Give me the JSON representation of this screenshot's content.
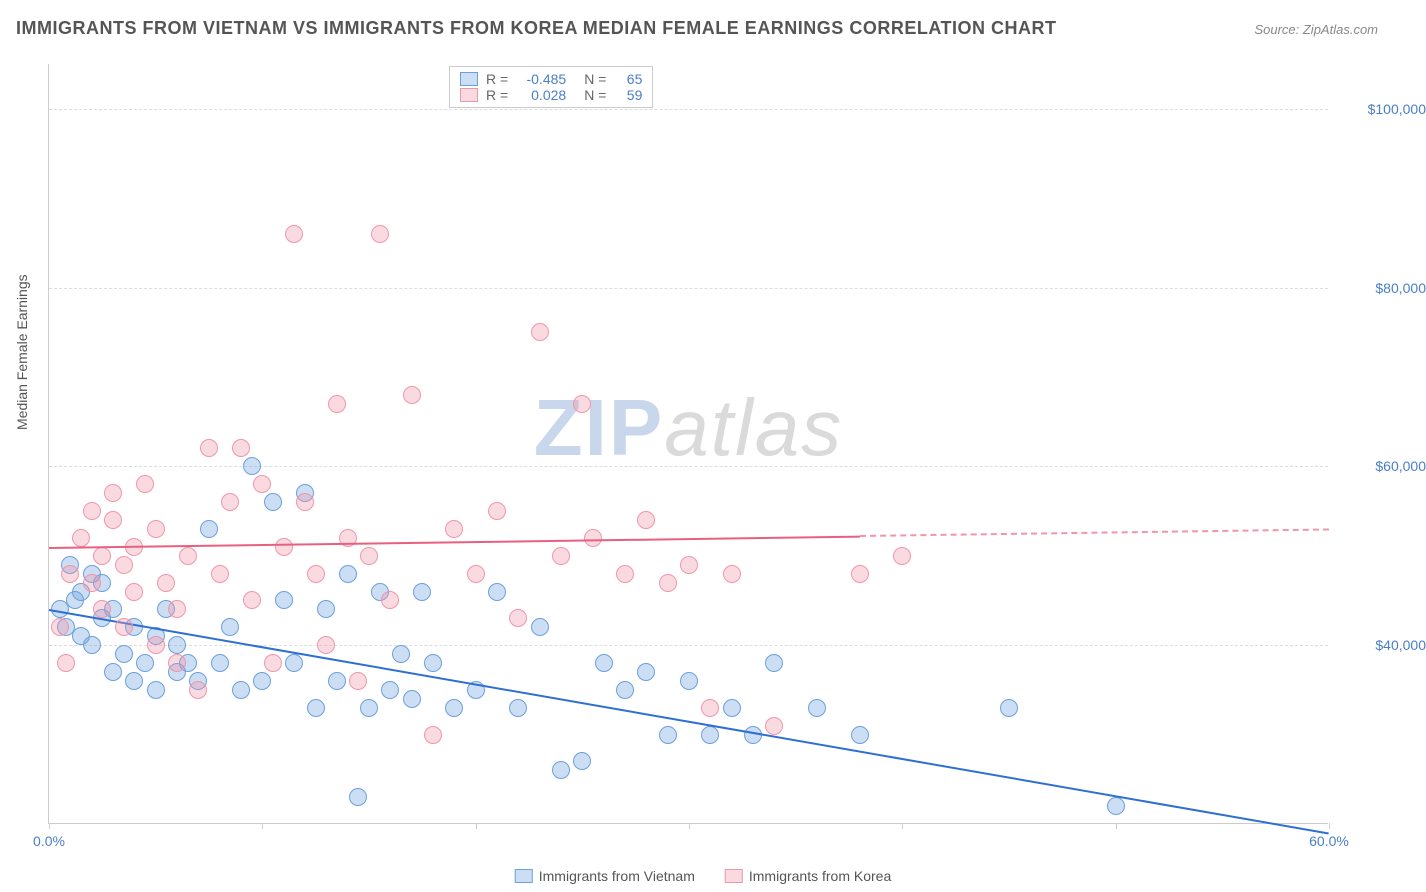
{
  "title": "IMMIGRANTS FROM VIETNAM VS IMMIGRANTS FROM KOREA MEDIAN FEMALE EARNINGS CORRELATION CHART",
  "source": "Source: ZipAtlas.com",
  "ylabel": "Median Female Earnings",
  "watermark_zip": "ZIP",
  "watermark_atlas": "atlas",
  "chart": {
    "type": "scatter",
    "background_color": "#ffffff",
    "grid_color": "#dddddd",
    "axis_color": "#cccccc",
    "xlim": [
      0,
      60
    ],
    "ylim": [
      20000,
      105000
    ],
    "yticks": [
      40000,
      60000,
      80000,
      100000
    ],
    "ytick_labels": [
      "$40,000",
      "$60,000",
      "$80,000",
      "$100,000"
    ],
    "xticks": [
      0,
      10,
      20,
      30,
      40,
      50,
      60
    ],
    "xtick_labels_shown": {
      "0": "0.0%",
      "60": "60.0%"
    },
    "marker_radius": 9,
    "marker_stroke_width": 1.5,
    "label_fontsize": 14,
    "tick_label_color": "#4a7ec9"
  },
  "series": [
    {
      "name": "Immigrants from Vietnam",
      "fill": "rgba(108, 160, 220, 0.35)",
      "stroke": "#6ca0dc",
      "trend_color": "#2e6fd1",
      "R": "-0.485",
      "N": "65",
      "trend": {
        "x1": 0,
        "y1": 44000,
        "x2": 60,
        "y2": 19000,
        "solid_until_x": 60
      },
      "points": [
        [
          0.5,
          44000
        ],
        [
          0.8,
          42000
        ],
        [
          1.0,
          49000
        ],
        [
          1.2,
          45000
        ],
        [
          1.5,
          41000
        ],
        [
          1.5,
          46000
        ],
        [
          2.0,
          48000
        ],
        [
          2.0,
          40000
        ],
        [
          2.5,
          43000
        ],
        [
          2.5,
          47000
        ],
        [
          3.0,
          37000
        ],
        [
          3.0,
          44000
        ],
        [
          3.5,
          39000
        ],
        [
          4.0,
          36000
        ],
        [
          4.0,
          42000
        ],
        [
          4.5,
          38000
        ],
        [
          5.0,
          35000
        ],
        [
          5.0,
          41000
        ],
        [
          5.5,
          44000
        ],
        [
          6.0,
          37000
        ],
        [
          6.0,
          40000
        ],
        [
          6.5,
          38000
        ],
        [
          7.0,
          36000
        ],
        [
          7.5,
          53000
        ],
        [
          8.0,
          38000
        ],
        [
          8.5,
          42000
        ],
        [
          9.0,
          35000
        ],
        [
          9.5,
          60000
        ],
        [
          10.0,
          36000
        ],
        [
          10.5,
          56000
        ],
        [
          11.0,
          45000
        ],
        [
          11.5,
          38000
        ],
        [
          12.0,
          57000
        ],
        [
          12.5,
          33000
        ],
        [
          13.0,
          44000
        ],
        [
          13.5,
          36000
        ],
        [
          14.0,
          48000
        ],
        [
          14.5,
          23000
        ],
        [
          15.0,
          33000
        ],
        [
          15.5,
          46000
        ],
        [
          16.0,
          35000
        ],
        [
          16.5,
          39000
        ],
        [
          17.0,
          34000
        ],
        [
          17.5,
          46000
        ],
        [
          18.0,
          38000
        ],
        [
          19.0,
          33000
        ],
        [
          20.0,
          35000
        ],
        [
          21.0,
          46000
        ],
        [
          22.0,
          33000
        ],
        [
          23.0,
          42000
        ],
        [
          24.0,
          26000
        ],
        [
          25.0,
          27000
        ],
        [
          26.0,
          38000
        ],
        [
          27.0,
          35000
        ],
        [
          28.0,
          37000
        ],
        [
          29.0,
          30000
        ],
        [
          30.0,
          36000
        ],
        [
          31.0,
          30000
        ],
        [
          32.0,
          33000
        ],
        [
          33.0,
          30000
        ],
        [
          34.0,
          38000
        ],
        [
          36.0,
          33000
        ],
        [
          38.0,
          30000
        ],
        [
          45.0,
          33000
        ],
        [
          50.0,
          22000
        ]
      ]
    },
    {
      "name": "Immigrants from Korea",
      "fill": "rgba(240, 150, 170, 0.35)",
      "stroke": "#f096aa",
      "trend_color": "#e8607f",
      "R": "0.028",
      "N": "59",
      "trend": {
        "x1": 0,
        "y1": 51000,
        "x2": 60,
        "y2": 53000,
        "solid_until_x": 38
      },
      "points": [
        [
          0.5,
          42000
        ],
        [
          0.8,
          38000
        ],
        [
          1.0,
          48000
        ],
        [
          1.5,
          52000
        ],
        [
          2.0,
          55000
        ],
        [
          2.0,
          47000
        ],
        [
          2.5,
          50000
        ],
        [
          2.5,
          44000
        ],
        [
          3.0,
          54000
        ],
        [
          3.0,
          57000
        ],
        [
          3.5,
          49000
        ],
        [
          3.5,
          42000
        ],
        [
          4.0,
          51000
        ],
        [
          4.0,
          46000
        ],
        [
          4.5,
          58000
        ],
        [
          5.0,
          40000
        ],
        [
          5.0,
          53000
        ],
        [
          5.5,
          47000
        ],
        [
          6.0,
          38000
        ],
        [
          6.0,
          44000
        ],
        [
          6.5,
          50000
        ],
        [
          7.0,
          35000
        ],
        [
          7.5,
          62000
        ],
        [
          8.0,
          48000
        ],
        [
          8.5,
          56000
        ],
        [
          9.0,
          62000
        ],
        [
          9.5,
          45000
        ],
        [
          10.0,
          58000
        ],
        [
          10.5,
          38000
        ],
        [
          11.0,
          51000
        ],
        [
          11.5,
          86000
        ],
        [
          12.0,
          56000
        ],
        [
          12.5,
          48000
        ],
        [
          13.0,
          40000
        ],
        [
          13.5,
          67000
        ],
        [
          14.0,
          52000
        ],
        [
          14.5,
          36000
        ],
        [
          15.0,
          50000
        ],
        [
          15.5,
          86000
        ],
        [
          16.0,
          45000
        ],
        [
          17.0,
          68000
        ],
        [
          18.0,
          30000
        ],
        [
          19.0,
          53000
        ],
        [
          20.0,
          48000
        ],
        [
          21.0,
          55000
        ],
        [
          22.0,
          43000
        ],
        [
          23.0,
          75000
        ],
        [
          24.0,
          50000
        ],
        [
          25.0,
          67000
        ],
        [
          25.5,
          52000
        ],
        [
          27.0,
          48000
        ],
        [
          28.0,
          54000
        ],
        [
          29.0,
          47000
        ],
        [
          30.0,
          49000
        ],
        [
          31.0,
          33000
        ],
        [
          32.0,
          48000
        ],
        [
          34.0,
          31000
        ],
        [
          38.0,
          48000
        ],
        [
          40.0,
          50000
        ]
      ]
    }
  ],
  "legend_bottom": [
    {
      "label": "Immigrants from Vietnam"
    },
    {
      "label": "Immigrants from Korea"
    }
  ],
  "rn_legend": {
    "r_label": "R =",
    "n_label": "N ="
  }
}
